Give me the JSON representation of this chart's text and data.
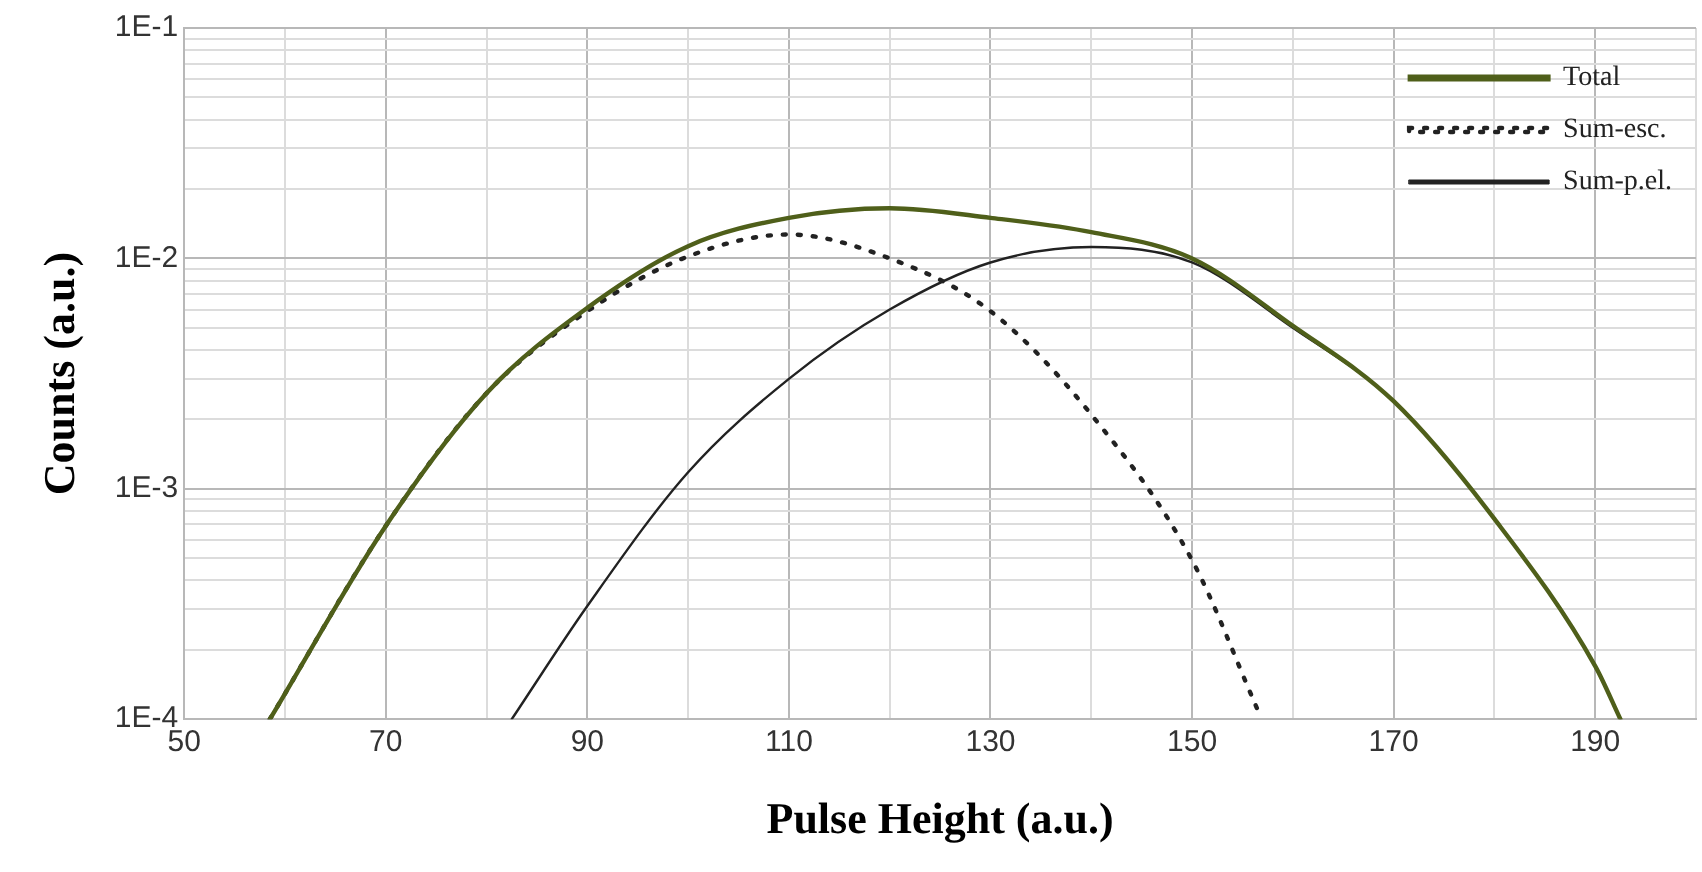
{
  "chart_data": {
    "type": "line",
    "xlabel": "Pulse Height (a.u.)",
    "ylabel": "Counts (a.u.)",
    "log": "y",
    "grid": true,
    "legend": "top right",
    "marker": "none",
    "xlim": [
      50,
      200
    ],
    "xticks": [
      50,
      {
        "value": 60,
        "label": null
      },
      70,
      {
        "value": 80,
        "label": null
      },
      90,
      {
        "value": 100,
        "label": null
      },
      110,
      {
        "value": 120,
        "label": null
      },
      130,
      {
        "value": 140,
        "label": null
      },
      150,
      {
        "value": 160,
        "label": null
      },
      170,
      {
        "value": 180,
        "label": null
      },
      190,
      {
        "value": 200,
        "label": null
      }
    ],
    "ylim": [
      0.0001,
      0.1
    ],
    "yticks": [
      {
        "value": 0.0001,
        "label": "1E-4"
      },
      {
        "value": 0.0002,
        "label": null
      },
      {
        "value": 0.0003,
        "label": null
      },
      {
        "value": 0.0004,
        "label": null
      },
      {
        "value": 0.0005,
        "label": null
      },
      {
        "value": 0.0006,
        "label": null
      },
      {
        "value": 0.0007,
        "label": null
      },
      {
        "value": 0.0008,
        "label": null
      },
      {
        "value": 0.0009,
        "label": null
      },
      {
        "value": 0.001,
        "label": "1E-3"
      },
      {
        "value": 0.002,
        "label": null
      },
      {
        "value": 0.003,
        "label": null
      },
      {
        "value": 0.004,
        "label": null
      },
      {
        "value": 0.005,
        "label": null
      },
      {
        "value": 0.006,
        "label": null
      },
      {
        "value": 0.007,
        "label": null
      },
      {
        "value": 0.008,
        "label": null
      },
      {
        "value": 0.009,
        "label": null
      },
      {
        "value": 0.01,
        "label": "1E-2"
      },
      {
        "value": 0.02,
        "label": null
      },
      {
        "value": 0.03,
        "label": null
      },
      {
        "value": 0.04,
        "label": null
      },
      {
        "value": 0.05,
        "label": null
      },
      {
        "value": 0.06,
        "label": null
      },
      {
        "value": 0.07,
        "label": null
      },
      {
        "value": 0.08,
        "label": null
      },
      {
        "value": 0.09,
        "label": null
      },
      {
        "value": 0.1,
        "label": "1E-1"
      }
    ],
    "series": [
      {
        "name": "Total",
        "color": "#4f5f1a",
        "line_style": "solid",
        "x": [
          58.5,
          70,
          80,
          90,
          100,
          110,
          120,
          130,
          140,
          150,
          160,
          170,
          180,
          190,
          192.5
        ],
        "values": [
          0.0001,
          0.00069,
          0.0026,
          0.0061,
          0.0113,
          0.015,
          0.0165,
          0.015,
          0.013,
          0.01,
          0.0051,
          0.0024,
          0.00074,
          0.00017,
          0.0001
        ]
      },
      {
        "name": "Sum-esc.",
        "color": "#222222",
        "line_style": "dotted",
        "x": [
          58.5,
          70,
          80,
          90,
          100,
          110,
          120,
          130,
          140,
          150,
          156.5
        ],
        "values": [
          0.0001,
          0.00069,
          0.0026,
          0.0059,
          0.0102,
          0.0127,
          0.01,
          0.0059,
          0.0021,
          0.00049,
          0.00011
        ]
      },
      {
        "name": "Sum-p.el.",
        "color": "#222222",
        "line_style": "solid",
        "x": [
          82.5,
          90,
          100,
          110,
          120,
          130,
          140,
          150,
          160,
          170,
          180,
          190,
          192.5
        ],
        "values": [
          0.0001,
          0.00031,
          0.00118,
          0.003,
          0.006,
          0.0096,
          0.0112,
          0.0096,
          0.005,
          0.0024,
          0.00074,
          0.00017,
          0.0001
        ]
      }
    ]
  }
}
